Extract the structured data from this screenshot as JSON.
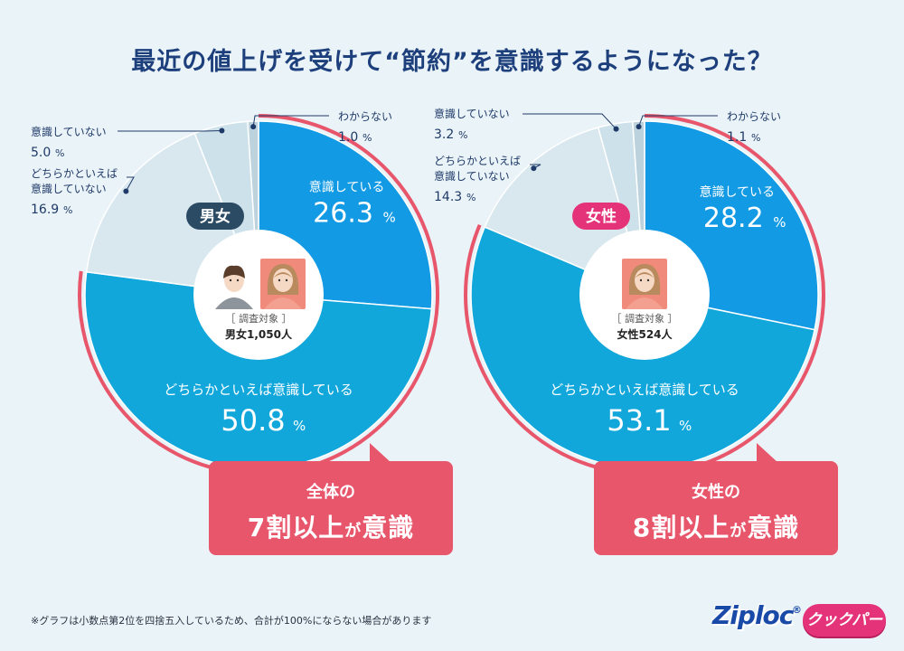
{
  "title": "最近の値上げを受けて“節約”を意識するようになった？",
  "footnote": "※グラフは小数点第2位を四捨五入しているため、合計が100%にならない場合があります",
  "brand": {
    "ziploc": "Ziploc",
    "reg": "®",
    "cookpa": "クックパー"
  },
  "colors": {
    "strong": "#139ae4",
    "moderate": "#11a7db",
    "not_really": "#d9e8ef",
    "not": "#cde1ea",
    "unknown": "#bcd3de",
    "ring": "#e8566c",
    "label_dark": "#1f3a68"
  },
  "chart_data": [
    {
      "type": "pie",
      "badge": "男女",
      "badge_color": "#2b4a63",
      "survey_label": "［ 調査対象 ］",
      "survey_value": "男女1,050人",
      "people_icons": [
        "male-icon",
        "female-icon"
      ],
      "slices": [
        {
          "key": "strong",
          "label": "意識している",
          "value": 26.3,
          "display": "26.3"
        },
        {
          "key": "moderate",
          "label": "どちらかといえば意識している",
          "value": 50.8,
          "display": "50.8"
        },
        {
          "key": "not_really",
          "label": "どちらかといえば 意識していない",
          "value": 16.9,
          "display": "16.9"
        },
        {
          "key": "not",
          "label": "意識していない",
          "value": 5.0,
          "display": "5.0"
        },
        {
          "key": "unknown",
          "label": "わからない",
          "value": 1.0,
          "display": "1.0"
        }
      ],
      "callout": {
        "line1": "全体の",
        "line2_main": "7割以上",
        "line2_small": "が",
        "line2_end": "意識"
      }
    },
    {
      "type": "pie",
      "badge": "女性",
      "badge_color": "#e5337a",
      "survey_label": "［ 調査対象 ］",
      "survey_value": "女性524人",
      "people_icons": [
        "female-icon"
      ],
      "slices": [
        {
          "key": "strong",
          "label": "意識している",
          "value": 28.2,
          "display": "28.2"
        },
        {
          "key": "moderate",
          "label": "どちらかといえば意識している",
          "value": 53.1,
          "display": "53.1"
        },
        {
          "key": "not_really",
          "label": "どちらかといえば 意識していない",
          "value": 14.3,
          "display": "14.3"
        },
        {
          "key": "not",
          "label": "意識していない",
          "value": 3.2,
          "display": "3.2"
        },
        {
          "key": "unknown",
          "label": "わからない",
          "value": 1.1,
          "display": "1.1"
        }
      ],
      "callout": {
        "line1": "女性の",
        "line2_main": "8割以上",
        "line2_small": "が",
        "line2_end": "意識"
      }
    }
  ]
}
